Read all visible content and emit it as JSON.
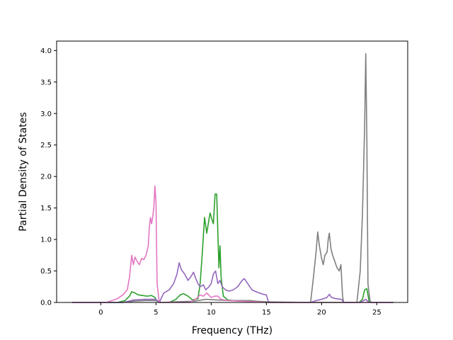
{
  "chart_data": {
    "type": "line",
    "title": "",
    "xlabel": "Frequency (THz)",
    "ylabel": "Partial Density of States",
    "xlim": [
      -4.0,
      27.8
    ],
    "ylim": [
      0.0,
      4.15
    ],
    "xticks": [
      0,
      5,
      10,
      15,
      20,
      25
    ],
    "yticks": [
      0.0,
      0.5,
      1.0,
      1.5,
      2.0,
      2.5,
      3.0,
      3.5,
      4.0
    ],
    "xtick_labels": [
      "0",
      "5",
      "10",
      "15",
      "20",
      "25"
    ],
    "ytick_labels": [
      "0.0",
      "0.5",
      "1.0",
      "1.5",
      "2.0",
      "2.5",
      "3.0",
      "3.5",
      "4.0"
    ],
    "grid": false,
    "legend": "none",
    "series": [
      {
        "color": "#2ca02c",
        "points": [
          [
            -2.6,
            0
          ],
          [
            1.5,
            0
          ],
          [
            2.2,
            0.03
          ],
          [
            2.6,
            0.1
          ],
          [
            2.8,
            0.17
          ],
          [
            3.1,
            0.15
          ],
          [
            3.4,
            0.12
          ],
          [
            3.8,
            0.11
          ],
          [
            4.2,
            0.1
          ],
          [
            4.6,
            0.11
          ],
          [
            4.9,
            0.08
          ],
          [
            5.1,
            0.02
          ],
          [
            5.3,
            0
          ],
          [
            6.2,
            0
          ],
          [
            6.8,
            0.05
          ],
          [
            7.2,
            0.12
          ],
          [
            7.5,
            0.14
          ],
          [
            7.9,
            0.1
          ],
          [
            8.3,
            0.04
          ],
          [
            8.8,
            0.06
          ],
          [
            9.0,
            0.3
          ],
          [
            9.2,
            0.8
          ],
          [
            9.4,
            1.35
          ],
          [
            9.6,
            1.1
          ],
          [
            9.8,
            1.32
          ],
          [
            9.9,
            1.42
          ],
          [
            10.1,
            1.3
          ],
          [
            10.2,
            1.25
          ],
          [
            10.35,
            1.72
          ],
          [
            10.5,
            1.72
          ],
          [
            10.7,
            0.55
          ],
          [
            10.8,
            0.9
          ],
          [
            10.9,
            0.4
          ],
          [
            11.1,
            0.1
          ],
          [
            11.5,
            0.04
          ],
          [
            12.5,
            0.02
          ],
          [
            13.5,
            0.03
          ],
          [
            14.5,
            0.01
          ],
          [
            15.0,
            0
          ],
          [
            23.4,
            0
          ],
          [
            23.7,
            0.05
          ],
          [
            23.9,
            0.2
          ],
          [
            24.1,
            0.22
          ],
          [
            24.3,
            0.02
          ],
          [
            24.6,
            0
          ],
          [
            26.5,
            0
          ]
        ]
      },
      {
        "color": "#7f7f7f",
        "points": [
          [
            -2.6,
            0
          ],
          [
            2.0,
            0
          ],
          [
            3.0,
            0.02
          ],
          [
            4.0,
            0.03
          ],
          [
            5.0,
            0.03
          ],
          [
            5.5,
            0
          ],
          [
            6.8,
            0.01
          ],
          [
            8.5,
            0.02
          ],
          [
            9.5,
            0.05
          ],
          [
            10.5,
            0.04
          ],
          [
            11.5,
            0.03
          ],
          [
            13.0,
            0.03
          ],
          [
            15.0,
            0.01
          ],
          [
            19.0,
            0
          ],
          [
            19.2,
            0.3
          ],
          [
            19.5,
            0.8
          ],
          [
            19.65,
            1.12
          ],
          [
            19.8,
            0.9
          ],
          [
            20.0,
            0.7
          ],
          [
            20.15,
            0.6
          ],
          [
            20.3,
            0.75
          ],
          [
            20.5,
            0.8
          ],
          [
            20.6,
            1.0
          ],
          [
            20.7,
            1.1
          ],
          [
            20.85,
            0.85
          ],
          [
            21.0,
            0.75
          ],
          [
            21.2,
            0.65
          ],
          [
            21.4,
            0.55
          ],
          [
            21.6,
            0.5
          ],
          [
            21.75,
            0.6
          ],
          [
            21.9,
            0.1
          ],
          [
            22.0,
            0
          ],
          [
            23.2,
            0
          ],
          [
            23.5,
            0.5
          ],
          [
            23.7,
            1.4
          ],
          [
            23.9,
            2.8
          ],
          [
            24.0,
            3.95
          ],
          [
            24.1,
            2.6
          ],
          [
            24.2,
            0.3
          ],
          [
            24.4,
            0
          ],
          [
            26.5,
            0
          ]
        ]
      },
      {
        "color": "#9467bd",
        "points": [
          [
            -2.6,
            0
          ],
          [
            2.0,
            0
          ],
          [
            3.0,
            0.04
          ],
          [
            4.0,
            0.05
          ],
          [
            5.0,
            0.05
          ],
          [
            5.3,
            0
          ],
          [
            5.7,
            0.15
          ],
          [
            6.2,
            0.2
          ],
          [
            6.6,
            0.3
          ],
          [
            6.9,
            0.45
          ],
          [
            7.1,
            0.63
          ],
          [
            7.3,
            0.52
          ],
          [
            7.6,
            0.45
          ],
          [
            7.9,
            0.35
          ],
          [
            8.2,
            0.42
          ],
          [
            8.4,
            0.48
          ],
          [
            8.6,
            0.38
          ],
          [
            8.8,
            0.3
          ],
          [
            9.0,
            0.25
          ],
          [
            9.3,
            0.28
          ],
          [
            9.5,
            0.2
          ],
          [
            9.8,
            0.25
          ],
          [
            10.0,
            0.3
          ],
          [
            10.2,
            0.45
          ],
          [
            10.4,
            0.5
          ],
          [
            10.6,
            0.3
          ],
          [
            10.8,
            0.35
          ],
          [
            11.0,
            0.25
          ],
          [
            11.3,
            0.2
          ],
          [
            11.6,
            0.18
          ],
          [
            12.0,
            0.2
          ],
          [
            12.4,
            0.25
          ],
          [
            12.8,
            0.35
          ],
          [
            13.0,
            0.38
          ],
          [
            13.3,
            0.3
          ],
          [
            13.7,
            0.2
          ],
          [
            14.2,
            0.16
          ],
          [
            14.7,
            0.13
          ],
          [
            15.0,
            0.12
          ],
          [
            15.2,
            0
          ],
          [
            19.0,
            0
          ],
          [
            19.5,
            0.03
          ],
          [
            20.0,
            0.05
          ],
          [
            20.5,
            0.08
          ],
          [
            20.7,
            0.13
          ],
          [
            20.9,
            0.08
          ],
          [
            21.3,
            0.06
          ],
          [
            21.8,
            0.05
          ],
          [
            22.0,
            0
          ],
          [
            23.5,
            0
          ],
          [
            24.0,
            0.05
          ],
          [
            24.3,
            0
          ],
          [
            26.5,
            0
          ]
        ]
      },
      {
        "color": "#e377c2",
        "points": [
          [
            -2.6,
            0
          ],
          [
            0.5,
            0
          ],
          [
            1.0,
            0.03
          ],
          [
            1.5,
            0.06
          ],
          [
            2.0,
            0.12
          ],
          [
            2.4,
            0.2
          ],
          [
            2.6,
            0.4
          ],
          [
            2.8,
            0.75
          ],
          [
            2.95,
            0.6
          ],
          [
            3.1,
            0.72
          ],
          [
            3.3,
            0.65
          ],
          [
            3.5,
            0.6
          ],
          [
            3.7,
            0.7
          ],
          [
            3.9,
            0.68
          ],
          [
            4.1,
            0.75
          ],
          [
            4.3,
            0.9
          ],
          [
            4.4,
            1.2
          ],
          [
            4.5,
            1.35
          ],
          [
            4.6,
            1.25
          ],
          [
            4.7,
            1.35
          ],
          [
            4.8,
            1.5
          ],
          [
            4.9,
            1.85
          ],
          [
            5.0,
            1.6
          ],
          [
            5.1,
            0.3
          ],
          [
            5.3,
            0
          ],
          [
            8.0,
            0
          ],
          [
            8.6,
            0.05
          ],
          [
            9.0,
            0.12
          ],
          [
            9.3,
            0.1
          ],
          [
            9.6,
            0.15
          ],
          [
            10.0,
            0.08
          ],
          [
            10.3,
            0.1
          ],
          [
            10.6,
            0.1
          ],
          [
            10.9,
            0.05
          ],
          [
            11.5,
            0.03
          ],
          [
            12.5,
            0.02
          ],
          [
            14.0,
            0.01
          ],
          [
            15.0,
            0
          ],
          [
            26.5,
            0
          ]
        ]
      }
    ]
  }
}
